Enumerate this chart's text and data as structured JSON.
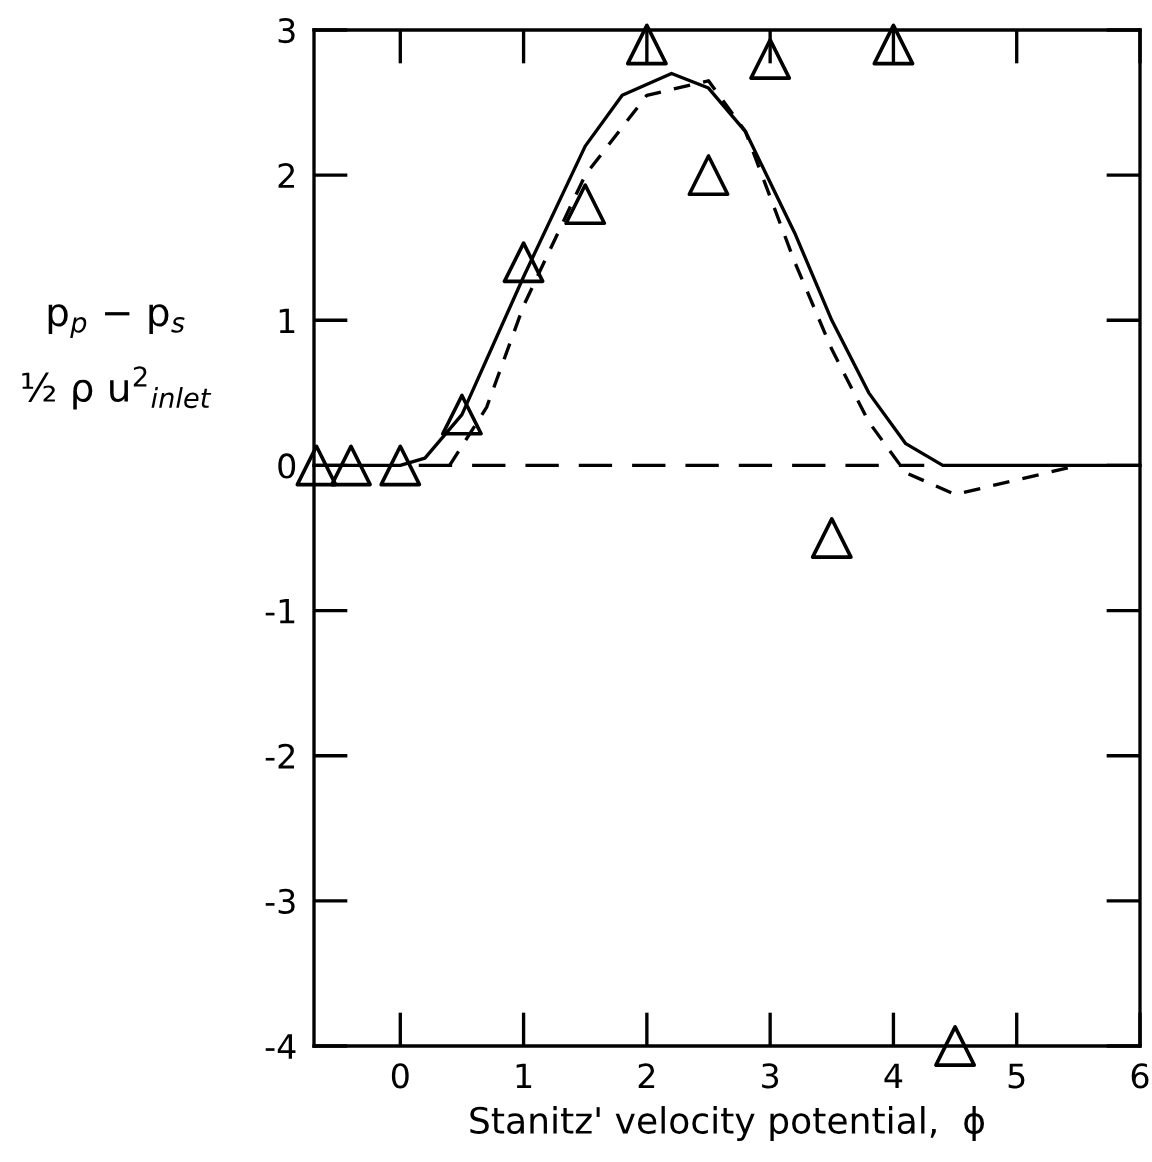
{
  "chart_data": {
    "type": "line",
    "xlabel": "Stanitz' velocity potential,  ϕ",
    "ylabel": "p$_{p}$ − p$_{s}$\n½ ρ u$^{2}$$_{inlet}$",
    "xlim": [
      -0.7,
      6
    ],
    "ylim": [
      -4,
      3
    ],
    "xticks": [
      0,
      1,
      2,
      3,
      4,
      5,
      6
    ],
    "yticks": [
      -4,
      -3,
      -2,
      -1,
      0,
      1,
      2,
      3
    ],
    "grid": false,
    "legend": false,
    "series": [
      {
        "color": "#000000",
        "line_style": "solid",
        "marker": "none",
        "x": [
          -0.7,
          0,
          0.2,
          0.5,
          1.0,
          1.5,
          1.8,
          2.2,
          2.5,
          2.8,
          3.2,
          3.5,
          3.8,
          4.1,
          4.4,
          6
        ],
        "values": [
          0,
          0,
          0.05,
          0.35,
          1.3,
          2.2,
          2.55,
          2.7,
          2.6,
          2.3,
          1.6,
          1.0,
          0.5,
          0.15,
          0,
          0
        ]
      },
      {
        "color": "#000000",
        "line_style": "dashed",
        "marker": "none",
        "x": [
          0.4,
          0.7,
          1.0,
          1.5,
          2.0,
          2.5,
          2.8,
          3.2,
          3.5,
          3.8,
          4.1,
          4.5,
          5.5
        ],
        "values": [
          0,
          0.4,
          1.1,
          2.0,
          2.55,
          2.65,
          2.3,
          1.4,
          0.8,
          0.3,
          -0.05,
          -0.2,
          0
        ]
      },
      {
        "color": "#000000",
        "line_style": "dashdot",
        "marker": "none",
        "x": [
          0.15,
          4.25
        ],
        "values": [
          0,
          0
        ]
      },
      {
        "type": "scatter",
        "color": "#000000",
        "marker": "triangle",
        "x": [
          -0.68,
          -0.4,
          0,
          0.5,
          1.0,
          1.5,
          2.0,
          2.5,
          3.0,
          3.5,
          4.0,
          4.5
        ],
        "values": [
          0,
          0,
          0,
          0.35,
          1.4,
          1.8,
          2.9,
          2.0,
          2.8,
          -0.5,
          2.9,
          -4.0
        ]
      }
    ]
  }
}
